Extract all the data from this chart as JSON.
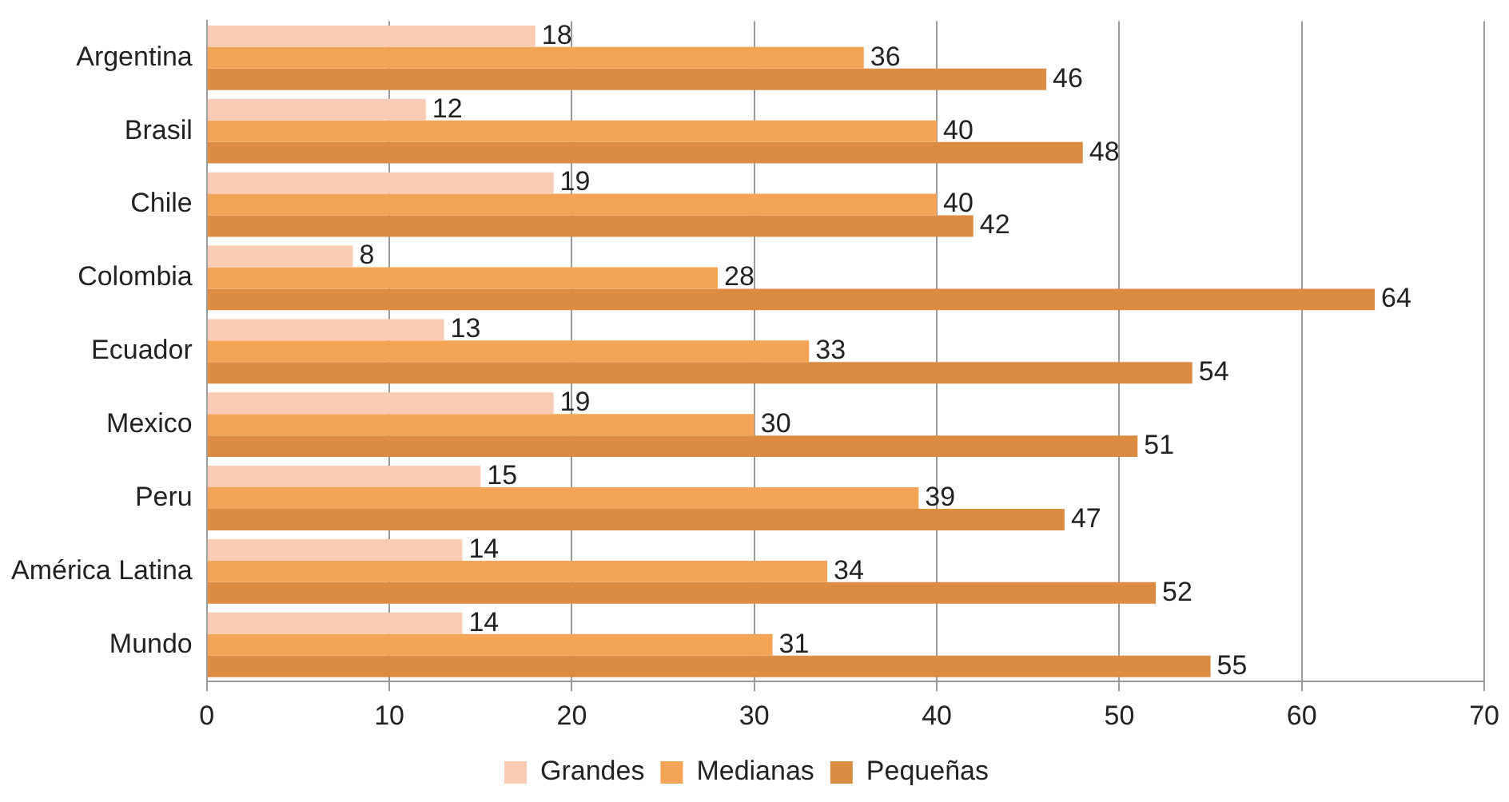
{
  "chart_data": {
    "type": "bar",
    "orientation": "horizontal",
    "categories": [
      "Argentina",
      "Brasil",
      "Chile",
      "Colombia",
      "Ecuador",
      "Mexico",
      "Peru",
      "América Latina",
      "Mundo"
    ],
    "series": [
      {
        "name": "Grandes",
        "color": "#fbcbb4",
        "values": [
          18,
          12,
          19,
          8,
          13,
          19,
          15,
          14,
          14
        ]
      },
      {
        "name": "Medianas",
        "color": "#f4a456",
        "values": [
          36,
          40,
          40,
          28,
          33,
          30,
          39,
          34,
          31
        ]
      },
      {
        "name": "Pequeñas",
        "color": "#dc8c42",
        "values": [
          46,
          48,
          42,
          64,
          54,
          51,
          47,
          52,
          55
        ]
      }
    ],
    "xlim": [
      0,
      70
    ],
    "xticks": [
      0,
      10,
      20,
      30,
      40,
      50,
      60,
      70
    ],
    "grid": "x",
    "legend": "bottom",
    "data_labels": true
  }
}
